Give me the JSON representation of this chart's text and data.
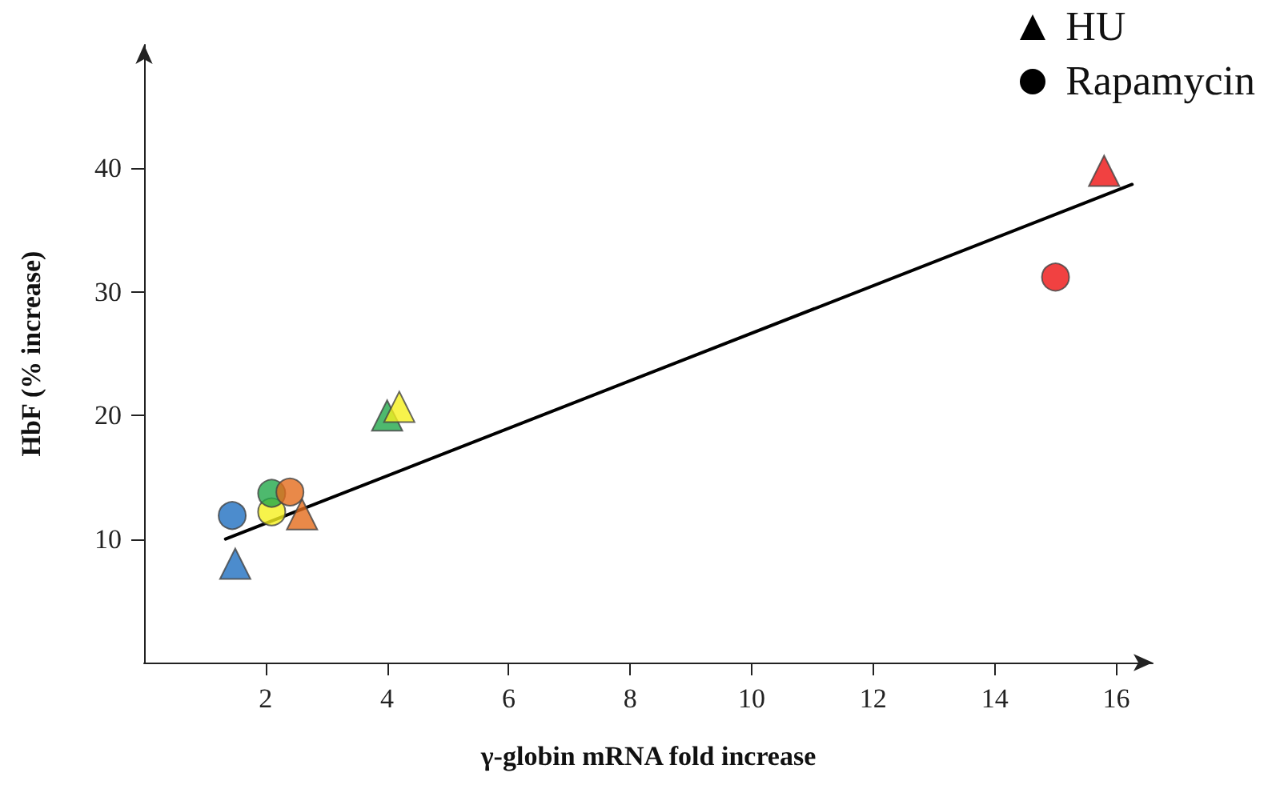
{
  "chart_data": {
    "type": "scatter",
    "xlabel": "γ-globin mRNA fold increase",
    "ylabel": "HbF (% increase)",
    "xlim": [
      0,
      16.6
    ],
    "xticks": [
      2,
      4,
      6,
      8,
      10,
      12,
      14,
      16
    ],
    "ylim": [
      0,
      50
    ],
    "yticks": [
      10,
      20,
      30,
      40
    ],
    "grid": false,
    "legend": "top right",
    "series": [
      {
        "name": "HU",
        "marker": "triangle",
        "color": "#000000",
        "x": [
          1.5,
          2.6,
          4.0,
          4.2,
          15.8
        ],
        "values": [
          8,
          12,
          20,
          20.7,
          39.8
        ],
        "colors": [
          "#1f6fc0",
          "#e46c1b",
          "#22a84a",
          "#f5f01e",
          "#ee1111"
        ]
      },
      {
        "name": "Rapamycin",
        "marker": "circle",
        "color": "#000000",
        "x": [
          1.45,
          2.1,
          2.1,
          2.4,
          15.0
        ],
        "values": [
          11.9,
          12.2,
          13.7,
          13.8,
          31.2
        ],
        "colors": [
          "#1f6fc0",
          "#f5f01e",
          "#22a84a",
          "#e46c1b",
          "#ee1111"
        ]
      },
      {
        "type": "line",
        "marker": "none",
        "color": "#000000",
        "x": [
          1.34,
          16.26
        ],
        "values": [
          10.0,
          38.7
        ]
      }
    ]
  }
}
